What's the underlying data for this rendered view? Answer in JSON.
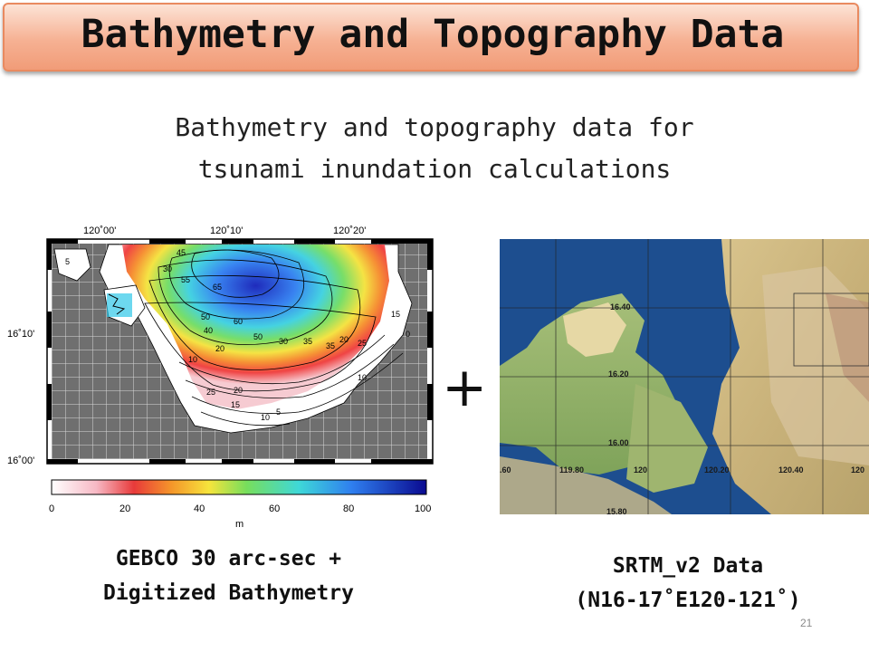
{
  "slide": {
    "title": "Bathymetry and Topography Data",
    "subtitle_line1": "Bathymetry and topography data for",
    "subtitle_line2": "tsunami inundation calculations",
    "plus": "+",
    "page_number": "21"
  },
  "left_figure": {
    "top_ticks": [
      "120˚00'",
      "120˚10'",
      "120˚20'"
    ],
    "left_ticks": [
      "16˚10'",
      "16˚00'"
    ],
    "colorbar_ticks": [
      "0",
      "20",
      "40",
      "60",
      "80",
      "100"
    ],
    "colorbar_unit": "m",
    "contour_labels": [
      "5",
      "45",
      "30",
      "55",
      "65",
      "40",
      "10",
      "25",
      "60",
      "15",
      "20",
      "35",
      "50",
      "30",
      "35",
      "20",
      "25",
      "10",
      "0",
      "15",
      "5",
      "10",
      "20",
      "50"
    ],
    "caption_line1": "GEBCO 30 arc-sec +",
    "caption_line2": "Digitized Bathymetry"
  },
  "right_figure": {
    "lat_labels": [
      "16.40",
      "16.20",
      "16.00",
      "15.80"
    ],
    "lon_labels": [
      ".60",
      "119.80",
      "120",
      "120.20",
      "120.40",
      "120"
    ],
    "caption_line1": "SRTM_v2 Data",
    "caption_line2": "(N16-17˚E120-121˚)"
  },
  "colors": {
    "banner": "#f6b193",
    "land_gray": "#6f6f6f",
    "sea_blue": "#1d4e8f"
  }
}
